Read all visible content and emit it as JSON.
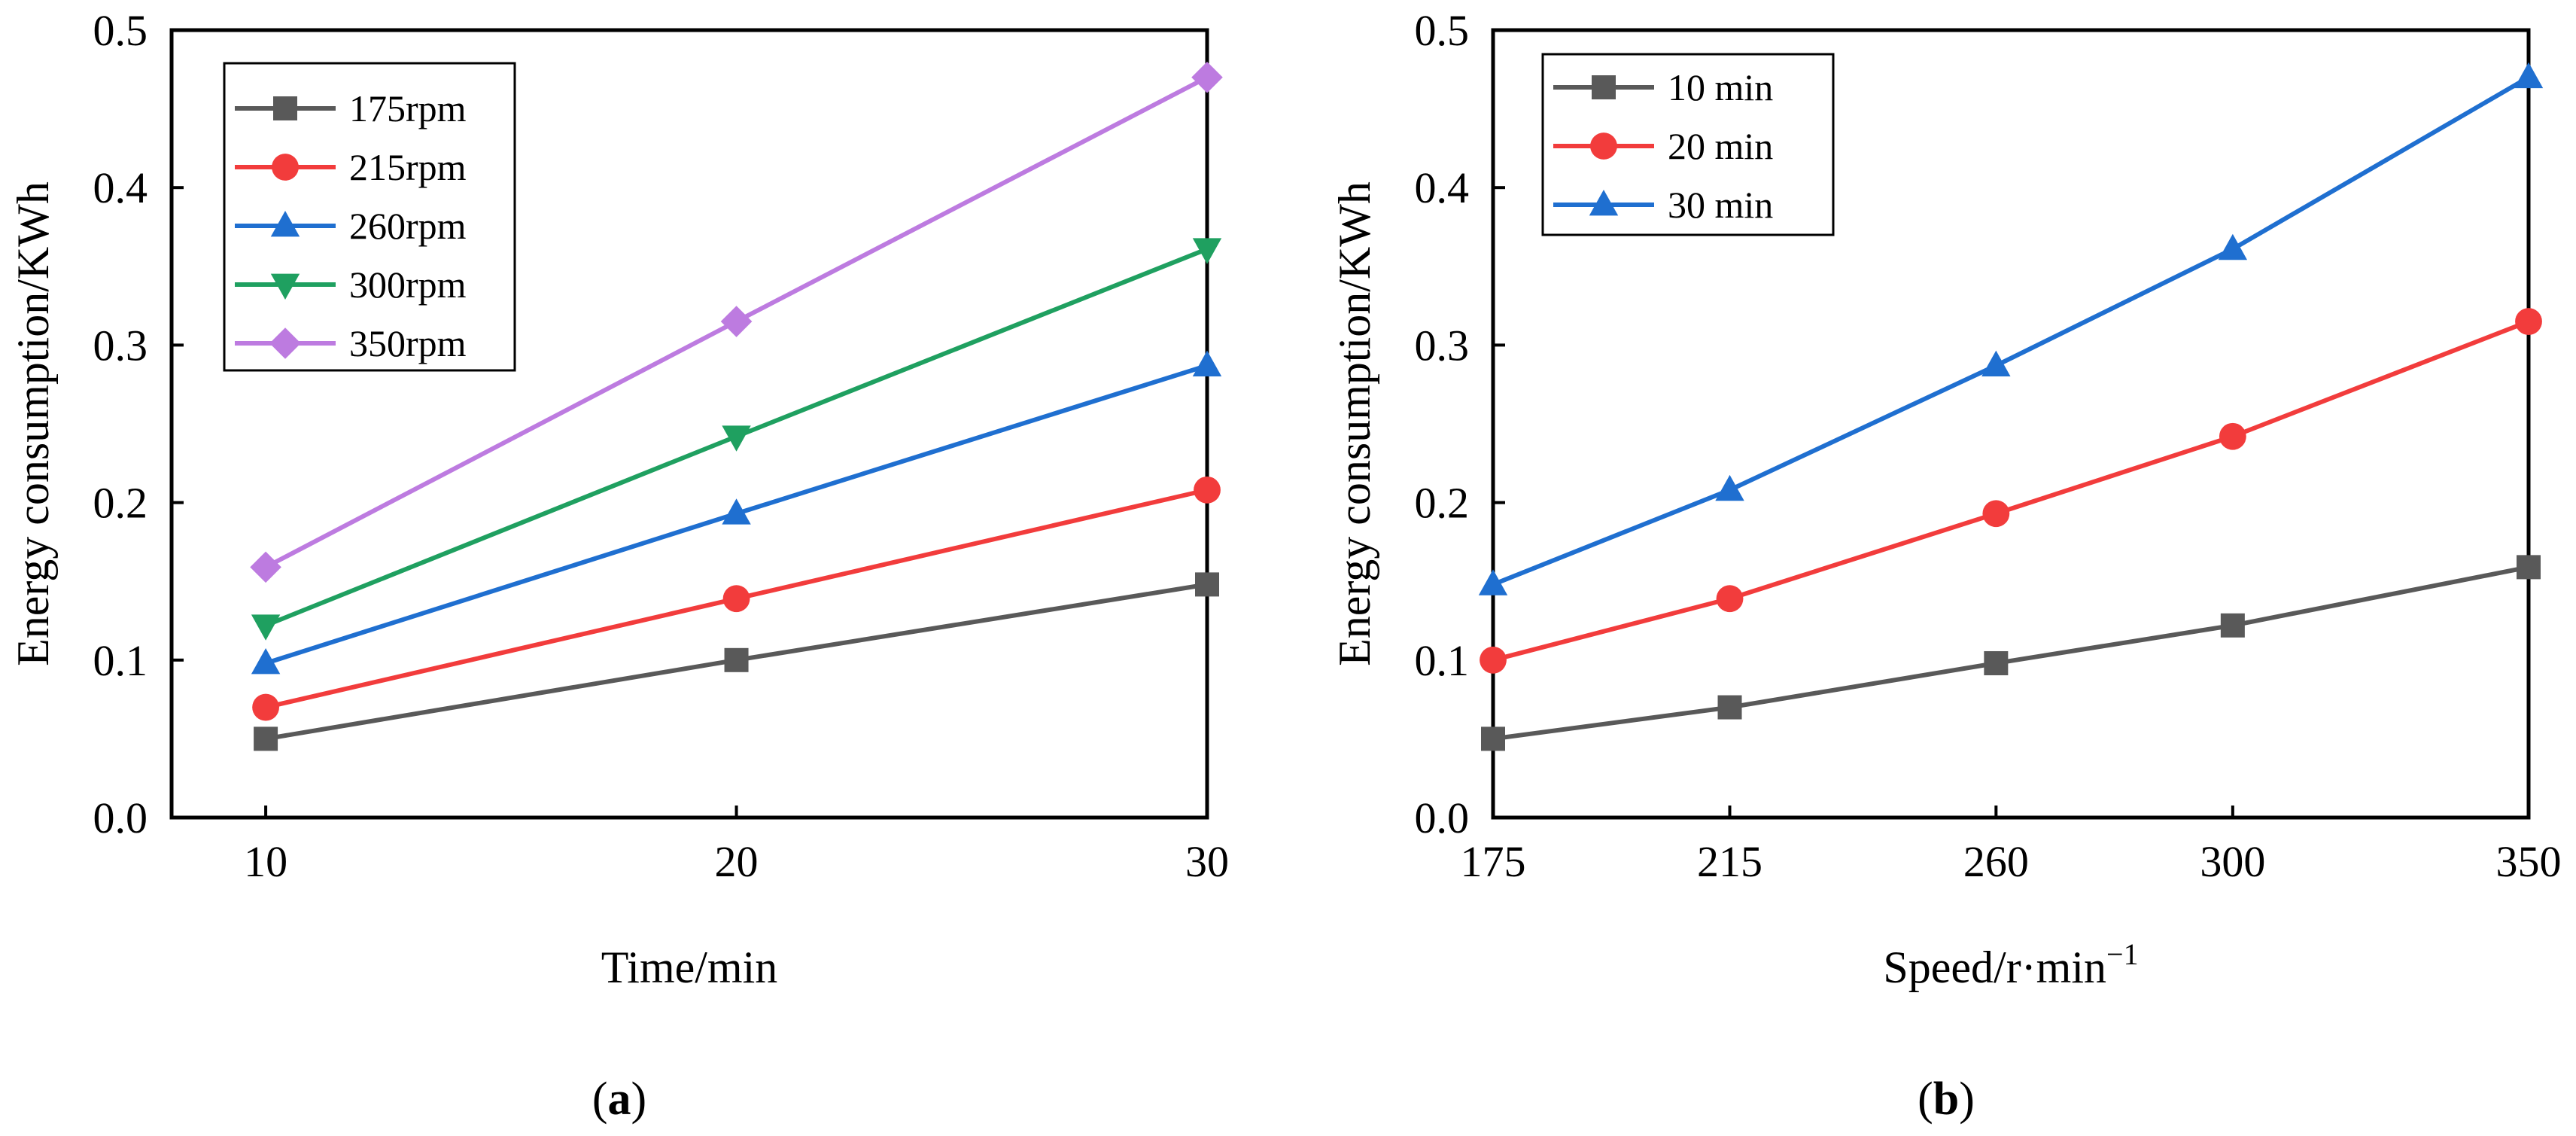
{
  "chart_data": [
    {
      "type": "line",
      "panel_label": "a",
      "xlabel": "Time/min",
      "ylabel": "Energy consumption/KWh",
      "x": [
        10,
        20,
        30
      ],
      "x_ticks": [
        "10",
        "20",
        "30"
      ],
      "xlim": [
        8,
        30
      ],
      "ylim": [
        0,
        0.5
      ],
      "y_ticks": [
        "0.0",
        "0.1",
        "0.2",
        "0.3",
        "0.4",
        "0.5"
      ],
      "grid": false,
      "legend_position": "top-left",
      "series": [
        {
          "name": "175rpm",
          "values": [
            0.05,
            0.1,
            0.148
          ],
          "color": "#595959",
          "marker": "square"
        },
        {
          "name": "215rpm",
          "values": [
            0.07,
            0.139,
            0.208
          ],
          "color": "#f23c3c",
          "marker": "circle"
        },
        {
          "name": "260rpm",
          "values": [
            0.098,
            0.193,
            0.287
          ],
          "color": "#1f6fd0",
          "marker": "triangle-up"
        },
        {
          "name": "300rpm",
          "values": [
            0.122,
            0.242,
            0.361
          ],
          "color": "#1fa060",
          "marker": "triangle-down"
        },
        {
          "name": "350rpm",
          "values": [
            0.159,
            0.315,
            0.47
          ],
          "color": "#bd7be0",
          "marker": "diamond"
        }
      ]
    },
    {
      "type": "line",
      "panel_label": "b",
      "xlabel": "Speed/r·min",
      "xlabel_superscript": "−1",
      "ylabel": "Energy consumption/KWh",
      "x": [
        175,
        215,
        260,
        300,
        350
      ],
      "x_ticks": [
        "175",
        "215",
        "260",
        "300",
        "350"
      ],
      "xlim": [
        175,
        350
      ],
      "ylim": [
        0,
        0.5
      ],
      "y_ticks": [
        "0.0",
        "0.1",
        "0.2",
        "0.3",
        "0.4",
        "0.5"
      ],
      "grid": false,
      "legend_position": "top-left",
      "series": [
        {
          "name": "10 min",
          "values": [
            0.05,
            0.07,
            0.098,
            0.122,
            0.159
          ],
          "color": "#595959",
          "marker": "square"
        },
        {
          "name": "20 min",
          "values": [
            0.1,
            0.139,
            0.193,
            0.242,
            0.315
          ],
          "color": "#f23c3c",
          "marker": "circle"
        },
        {
          "name": "30 min",
          "values": [
            0.148,
            0.208,
            0.287,
            0.361,
            0.47
          ],
          "color": "#1f6fd0",
          "marker": "triangle-up"
        }
      ]
    }
  ]
}
